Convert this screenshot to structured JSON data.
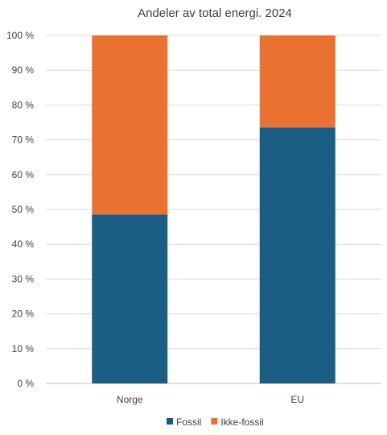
{
  "chart_data": {
    "type": "bar",
    "stacked": true,
    "title": "Andeler av total energi. 2024",
    "categories": [
      "Norge",
      "EU"
    ],
    "series": [
      {
        "name": "Fossil",
        "values": [
          48.5,
          73.5
        ],
        "color": "#1a5e84"
      },
      {
        "name": "Ikke-fossil",
        "values": [
          51.5,
          26.5
        ],
        "color": "#e97132"
      }
    ],
    "ylim": [
      0,
      100
    ],
    "yticks": [
      "0 %",
      "10 %",
      "20 %",
      "30 %",
      "40 %",
      "50 %",
      "60 %",
      "70 %",
      "80 %",
      "90 %",
      "100 %"
    ],
    "grid": true,
    "legend": "bottom"
  }
}
